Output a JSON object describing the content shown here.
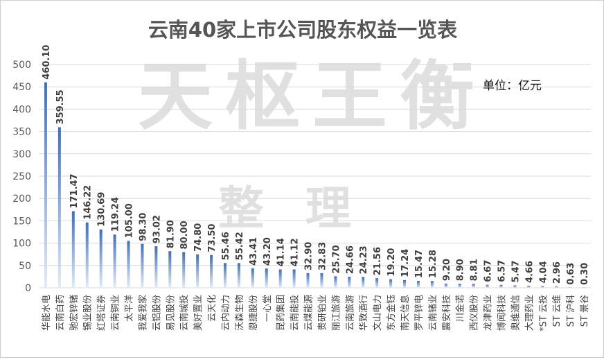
{
  "title": "云南40家上市公司股东权益一览表",
  "unit_label": "单位：亿元",
  "watermark": {
    "line1": "天枢王衡",
    "line2": "整理"
  },
  "colors": {
    "bar_top": "#3b6fc6",
    "bar_bottom": "#e3ebf8",
    "grid": "#d9d9d9",
    "text": "#404040"
  },
  "chart_data": {
    "type": "bar",
    "title": "云南40家上市公司股东权益一览表",
    "unit": "单位：亿元",
    "ylim": [
      0,
      500
    ],
    "yticks": [
      0,
      50,
      100,
      150,
      200,
      250,
      300,
      350,
      400,
      450,
      500
    ],
    "grid": true,
    "categories": [
      "华能水电",
      "云南白药",
      "驰宏锌锗",
      "锡业股份",
      "红塔证券",
      "云南铜业",
      "太平洋",
      "我爱我家",
      "云铝股份",
      "易见股份",
      "云南城投",
      "美好置业",
      "云天化",
      "云内动力",
      "沃森生物",
      "恩捷股份",
      "一心堂",
      "昆药集团",
      "云南能投",
      "云煤能源",
      "贵研铂业",
      "丽江旅游",
      "云南旅游",
      "华致酒行",
      "文山电力",
      "东方金钰",
      "南天信息",
      "罗平锌电",
      "云南锗业",
      "震安科技",
      "川金诺",
      "西仪股份",
      "龙津药业",
      "博闻科技",
      "奥维通信",
      "大理药业",
      "*ST 云投",
      "ST 云维",
      "ST 沪科",
      "ST 景谷"
    ],
    "values": [
      460.1,
      359.55,
      171.47,
      146.22,
      130.69,
      119.24,
      105.0,
      98.3,
      93.02,
      81.9,
      80.0,
      74.8,
      73.5,
      55.46,
      55.42,
      43.41,
      43.2,
      41.14,
      41.12,
      32.9,
      32.83,
      25.7,
      24.66,
      24.23,
      21.56,
      19.2,
      17.24,
      15.47,
      15.28,
      9.2,
      8.9,
      8.81,
      6.67,
      6.57,
      5.47,
      4.66,
      4.04,
      2.96,
      0.63,
      0.3
    ],
    "value_labels": [
      "460.10",
      "359.55",
      "171.47",
      "146.22",
      "130.69",
      "119.24",
      "105.00",
      "98.30",
      "93.02",
      "81.90",
      "80.00",
      "74.80",
      "73.50",
      "55.46",
      "55.42",
      "43.41",
      "43.20",
      "41.14",
      "41.12",
      "32.90",
      "32.83",
      "25.70",
      "24.66",
      "24.23",
      "21.56",
      "19.20",
      "17.24",
      "15.47",
      "15.28",
      "9.20",
      "8.90",
      "8.81",
      "6.67",
      "6.57",
      "5.47",
      "4.66",
      "4.04",
      "2.96",
      "0.63",
      "0.30"
    ]
  }
}
